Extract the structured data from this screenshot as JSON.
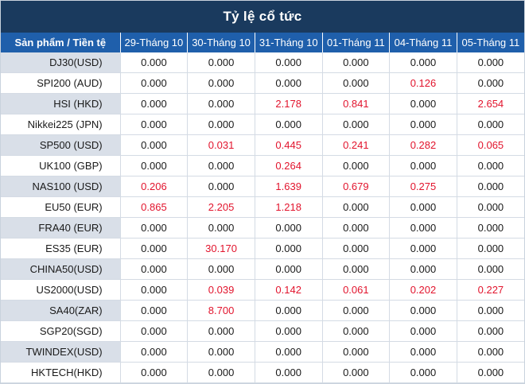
{
  "title": "Tỷ lệ cổ tức",
  "header": {
    "first": "Sản phẩm / Tiền tệ",
    "dates": [
      "29-Tháng 10",
      "30-Tháng 10",
      "31-Tháng 10",
      "01-Tháng 11",
      "04-Tháng 11",
      "05-Tháng 11"
    ]
  },
  "rows": [
    {
      "product": "DJ30(USD)",
      "values": [
        "0.000",
        "0.000",
        "0.000",
        "0.000",
        "0.000",
        "0.000"
      ]
    },
    {
      "product": "SPI200 (AUD)",
      "values": [
        "0.000",
        "0.000",
        "0.000",
        "0.000",
        "0.126",
        "0.000"
      ]
    },
    {
      "product": "HSI (HKD)",
      "values": [
        "0.000",
        "0.000",
        "2.178",
        "0.841",
        "0.000",
        "2.654"
      ]
    },
    {
      "product": "Nikkei225 (JPN)",
      "values": [
        "0.000",
        "0.000",
        "0.000",
        "0.000",
        "0.000",
        "0.000"
      ]
    },
    {
      "product": "SP500 (USD)",
      "values": [
        "0.000",
        "0.031",
        "0.445",
        "0.241",
        "0.282",
        "0.065"
      ]
    },
    {
      "product": "UK100 (GBP)",
      "values": [
        "0.000",
        "0.000",
        "0.264",
        "0.000",
        "0.000",
        "0.000"
      ]
    },
    {
      "product": "NAS100 (USD)",
      "values": [
        "0.206",
        "0.000",
        "1.639",
        "0.679",
        "0.275",
        "0.000"
      ]
    },
    {
      "product": "EU50 (EUR)",
      "values": [
        "0.865",
        "2.205",
        "1.218",
        "0.000",
        "0.000",
        "0.000"
      ]
    },
    {
      "product": "FRA40 (EUR)",
      "values": [
        "0.000",
        "0.000",
        "0.000",
        "0.000",
        "0.000",
        "0.000"
      ]
    },
    {
      "product": "ES35 (EUR)",
      "values": [
        "0.000",
        "30.170",
        "0.000",
        "0.000",
        "0.000",
        "0.000"
      ]
    },
    {
      "product": "CHINA50(USD)",
      "values": [
        "0.000",
        "0.000",
        "0.000",
        "0.000",
        "0.000",
        "0.000"
      ]
    },
    {
      "product": "US2000(USD)",
      "values": [
        "0.000",
        "0.039",
        "0.142",
        "0.061",
        "0.202",
        "0.227"
      ]
    },
    {
      "product": "SA40(ZAR)",
      "values": [
        "0.000",
        "8.700",
        "0.000",
        "0.000",
        "0.000",
        "0.000"
      ]
    },
    {
      "product": "SGP20(SGD)",
      "values": [
        "0.000",
        "0.000",
        "0.000",
        "0.000",
        "0.000",
        "0.000"
      ]
    },
    {
      "product": "TWINDEX(USD)",
      "values": [
        "0.000",
        "0.000",
        "0.000",
        "0.000",
        "0.000",
        "0.000"
      ]
    },
    {
      "product": "HKTECH(HKD)",
      "values": [
        "0.000",
        "0.000",
        "0.000",
        "0.000",
        "0.000",
        "0.000"
      ]
    }
  ],
  "colors": {
    "title_bg": "#1a3a5e",
    "header_bg": "#1f5fab",
    "product_stripe": "#d9dfe8",
    "nonzero_text": "#e2142d",
    "zero_text": "#1a1a1a"
  }
}
